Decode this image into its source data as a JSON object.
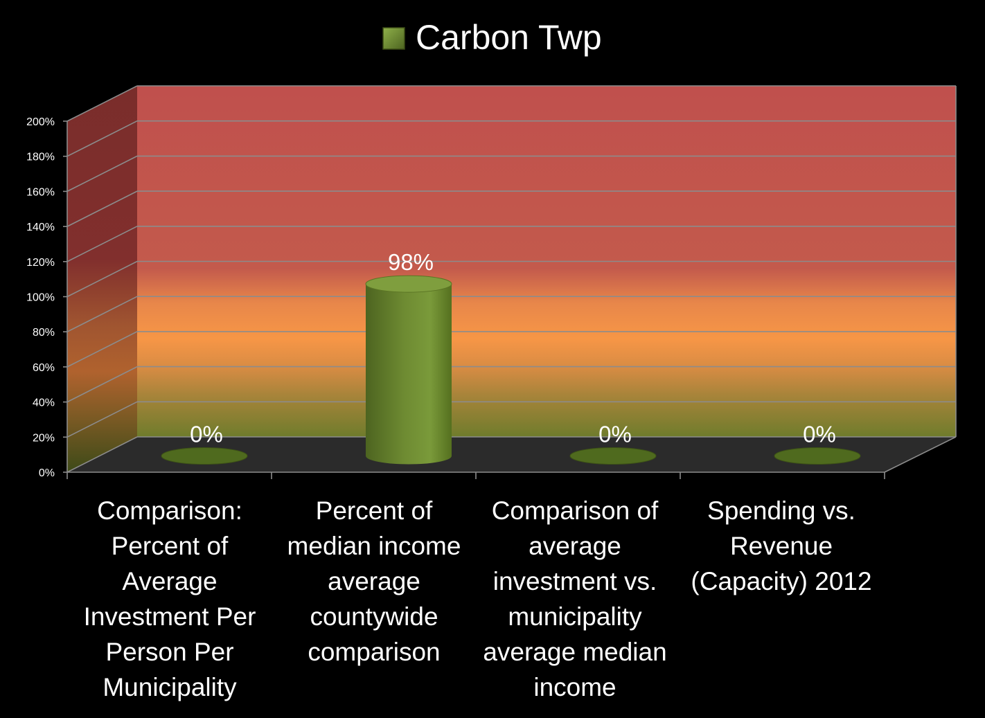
{
  "chart_data": {
    "type": "bar",
    "title": "",
    "xlabel": "",
    "ylabel": "",
    "categories": [
      "Comparison: Percent of Average Investment Per Person Per Municipality",
      "Percent of median income average countywide comparison",
      "Comparison of average investment vs. municipality average median income",
      "Spending vs. Revenue (Capacity) 2012"
    ],
    "series": [
      {
        "name": "Carbon Twp",
        "values": [
          0,
          98,
          0,
          0
        ],
        "color": "#6e8b32"
      }
    ],
    "data_labels": [
      "0%",
      "98%",
      "0%",
      "0%"
    ],
    "ylim": [
      0,
      200
    ],
    "yticks": [
      "0%",
      "20%",
      "40%",
      "60%",
      "80%",
      "100%",
      "120%",
      "140%",
      "160%",
      "180%",
      "200%"
    ],
    "legend": "top",
    "grid": true,
    "background_bands": "red above 100%, orange 60-100%, green below 20%",
    "colors": {
      "background": "#000000",
      "text": "#ffffff",
      "tick_text": "#ffffff",
      "bar": "#6e8b32"
    }
  }
}
